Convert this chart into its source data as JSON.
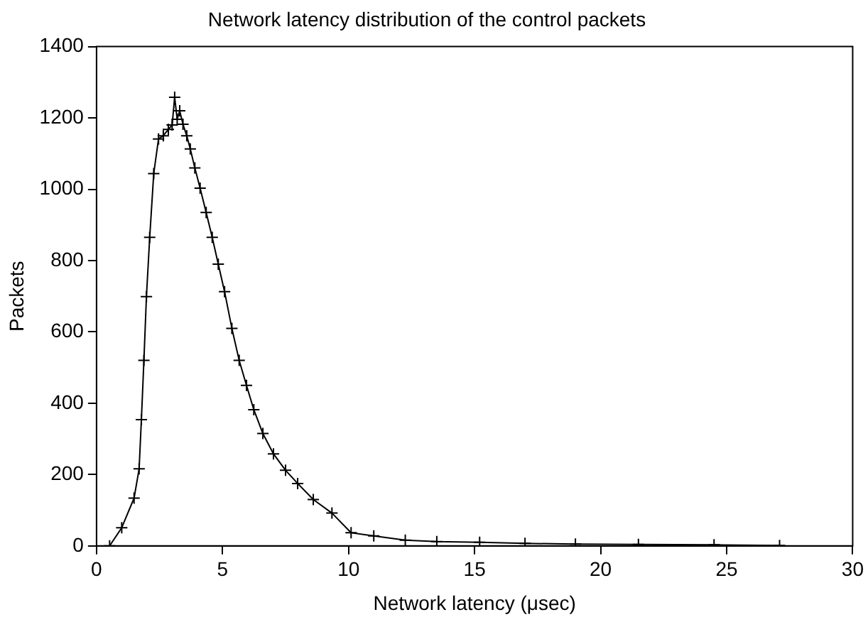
{
  "chart_data": {
    "type": "line",
    "title": "Network latency distribution of the control packets",
    "xlabel": "Network latency (μsec)",
    "ylabel": "Packets",
    "series": [
      {
        "color": "#000000",
        "x": [
          0.52,
          1.0,
          1.49,
          1.69,
          1.78,
          1.88,
          1.98,
          2.11,
          2.27,
          2.46,
          2.65,
          2.85,
          3.0,
          3.1,
          3.2,
          3.3,
          3.43,
          3.58,
          3.72,
          3.9,
          4.11,
          4.35,
          4.59,
          4.83,
          5.08,
          5.37,
          5.66,
          5.95,
          6.24,
          6.6,
          7.02,
          7.5,
          7.98,
          8.6,
          9.34,
          10.1,
          11.0,
          12.25,
          13.5,
          15.2,
          17.0,
          19.0,
          21.5,
          24.5,
          27.1
        ],
        "values": [
          0,
          51,
          134,
          216,
          354,
          520,
          699,
          865,
          1044,
          1141,
          1150,
          1168,
          1180,
          1258,
          1196,
          1220,
          1182,
          1150,
          1113,
          1060,
          1003,
          935,
          865,
          790,
          713,
          610,
          520,
          450,
          382,
          315,
          258,
          212,
          175,
          130,
          92,
          37,
          28,
          16,
          12,
          10,
          7,
          5,
          4,
          3,
          1
        ]
      }
    ],
    "xlim": [
      0,
      30
    ],
    "xticks": [
      0,
      5,
      10,
      15,
      20,
      25,
      30
    ],
    "ylim": [
      0,
      1400
    ],
    "yticks": [
      0,
      200,
      400,
      600,
      800,
      1000,
      1200,
      1400
    ],
    "grid": false,
    "legend": false,
    "marker": "cross",
    "line_style": "solid"
  }
}
